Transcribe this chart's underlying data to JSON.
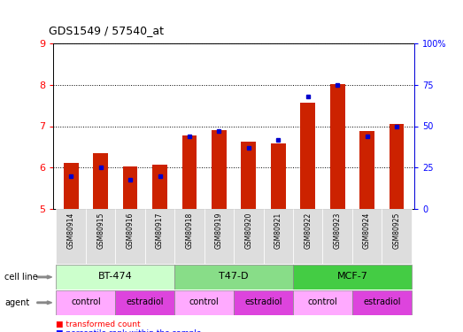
{
  "title": "GDS1549 / 57540_at",
  "samples": [
    "GSM80914",
    "GSM80915",
    "GSM80916",
    "GSM80917",
    "GSM80918",
    "GSM80919",
    "GSM80920",
    "GSM80921",
    "GSM80922",
    "GSM80923",
    "GSM80924",
    "GSM80925"
  ],
  "red_values": [
    6.12,
    6.35,
    6.02,
    6.08,
    6.78,
    6.9,
    6.62,
    6.58,
    7.57,
    8.02,
    6.88,
    7.05
  ],
  "blue_percentile": [
    20,
    25,
    18,
    20,
    44,
    47,
    37,
    42,
    68,
    75,
    44,
    50
  ],
  "ylim_left": [
    5,
    9
  ],
  "ylim_right": [
    0,
    100
  ],
  "yticks_left": [
    5,
    6,
    7,
    8,
    9
  ],
  "yticks_right": [
    0,
    25,
    50,
    75,
    100
  ],
  "bar_color": "#cc2200",
  "marker_color": "#0000cc",
  "bar_bottom": 5.0,
  "bar_width": 0.5,
  "cell_line_groups": [
    {
      "label": "BT-474",
      "start": 0,
      "end": 3,
      "color": "#ccffcc"
    },
    {
      "label": "T47-D",
      "start": 4,
      "end": 7,
      "color": "#88dd88"
    },
    {
      "label": "MCF-7",
      "start": 8,
      "end": 11,
      "color": "#44cc44"
    }
  ],
  "agent_groups": [
    {
      "label": "control",
      "start": 0,
      "end": 1,
      "color": "#ffaaff"
    },
    {
      "label": "estradiol",
      "start": 2,
      "end": 3,
      "color": "#dd44dd"
    },
    {
      "label": "control",
      "start": 4,
      "end": 5,
      "color": "#ffaaff"
    },
    {
      "label": "estradiol",
      "start": 6,
      "end": 7,
      "color": "#dd44dd"
    },
    {
      "label": "control",
      "start": 8,
      "end": 9,
      "color": "#ffaaff"
    },
    {
      "label": "estradiol",
      "start": 10,
      "end": 11,
      "color": "#dd44dd"
    }
  ]
}
